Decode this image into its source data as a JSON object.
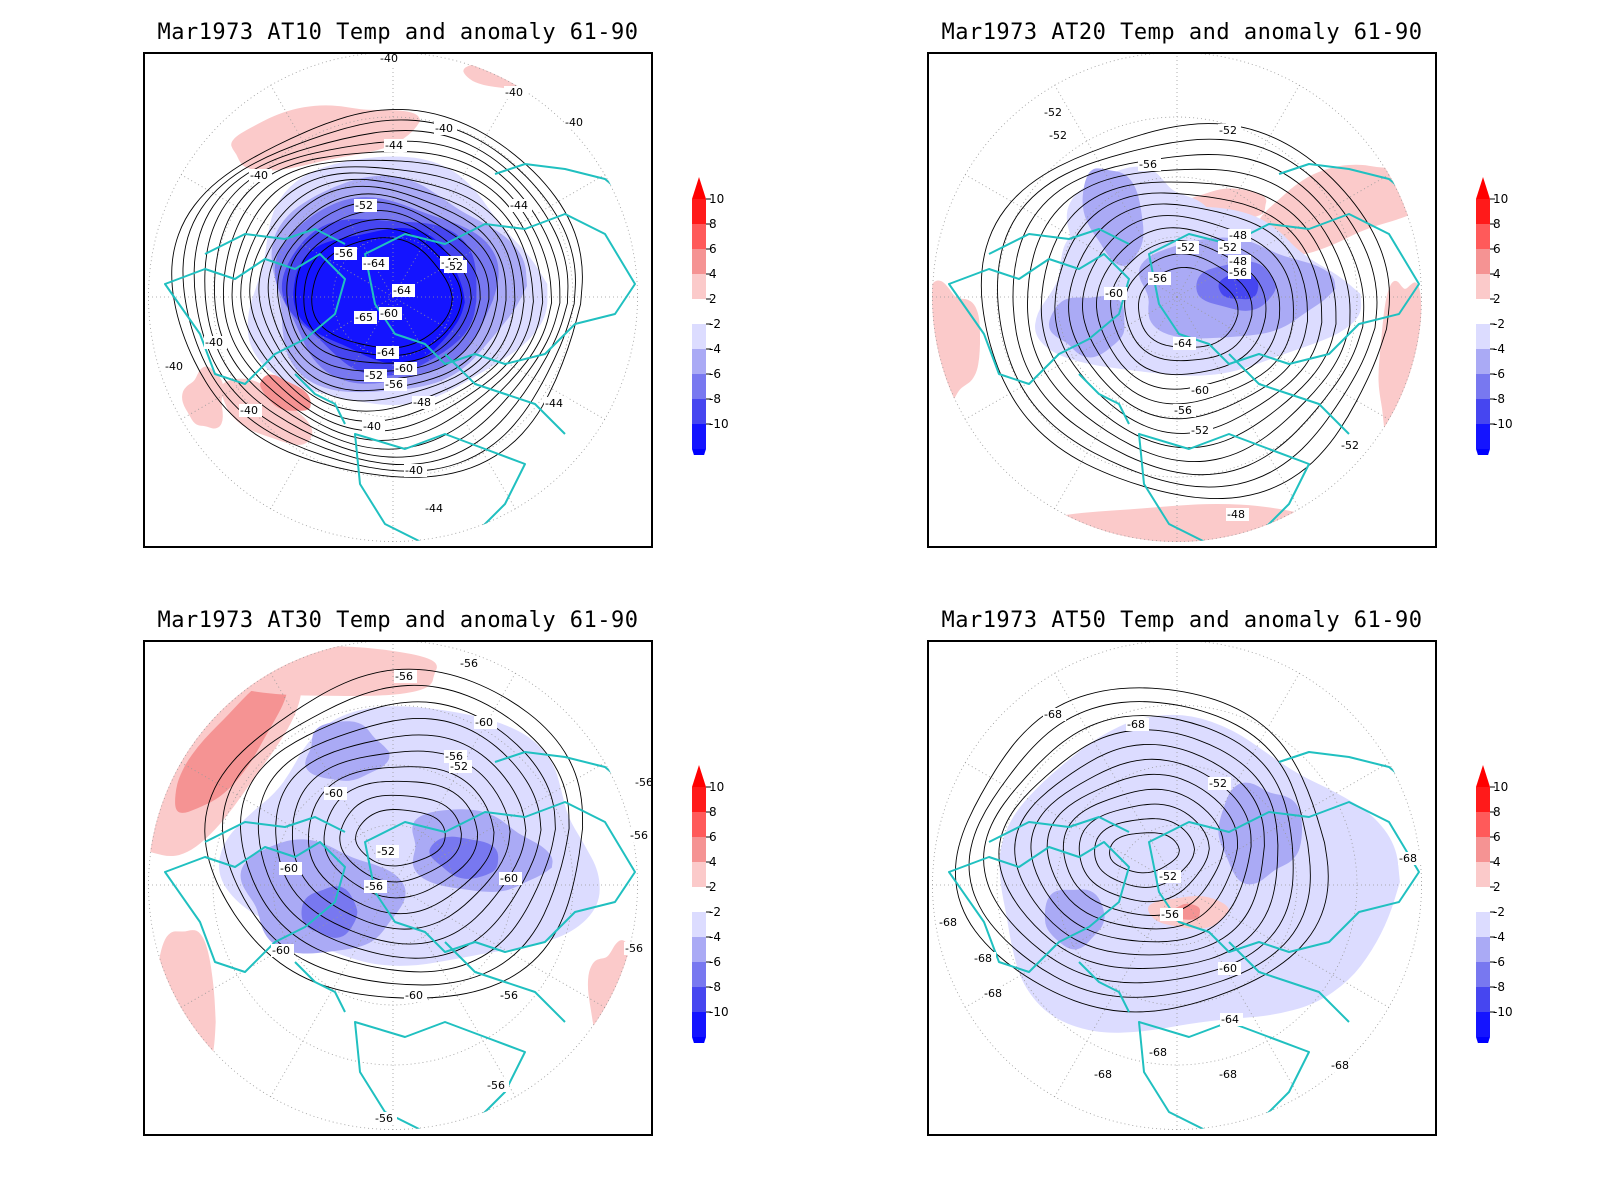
{
  "legend": {
    "labels": [
      "10",
      "8",
      "6",
      "4",
      "2",
      "-2",
      "-4",
      "-6",
      "-8",
      "-10"
    ],
    "colors": [
      "#ff1a1a",
      "#ff5a5a",
      "#f59393",
      "#fbcaca",
      "#ffffff",
      "#dcdcff",
      "#aaaaf5",
      "#7878f0",
      "#4646f0",
      "#1414ff"
    ],
    "tip_top": "#ff0000",
    "tip_bottom": "#0000ff"
  },
  "colors": {
    "coast": "#20c0c0",
    "contour": "#000000",
    "grid": "#999999"
  },
  "panels": [
    {
      "title": "Mar1973 AT10 Temp and anomaly 61-90",
      "contour_labels": [
        "-40",
        "-40",
        "-40",
        "-40",
        "-40",
        "-40",
        "-40",
        "-40",
        "-40",
        "-40",
        "-44",
        "-44",
        "-44",
        "-44",
        "-48",
        "-48",
        "-52",
        "-52",
        "-52",
        "-56",
        "-56",
        "-60",
        "-60",
        "-64",
        "-64",
        "-64",
        "-65",
        "-60"
      ]
    },
    {
      "title": "Mar1973 AT20 Temp and anomaly 61-90",
      "contour_labels": [
        "-52",
        "-52",
        "-52",
        "-56",
        "-48",
        "-52",
        "-52",
        "-56",
        "-56",
        "-60",
        "-64",
        "-60",
        "-56",
        "-52",
        "-48",
        "-48",
        "-52"
      ]
    },
    {
      "title": "Mar1973 AT30 Temp and anomaly 61-90",
      "contour_labels": [
        "-56",
        "-56",
        "-60",
        "-56",
        "-52",
        "-60",
        "-56",
        "-56",
        "-52",
        "-60",
        "-56",
        "-60",
        "-60",
        "-60",
        "-56",
        "-56",
        "-56",
        "-56"
      ]
    },
    {
      "title": "Mar1973 AT50 Temp and anomaly 61-90",
      "contour_labels": [
        "-68",
        "-68",
        "-52",
        "-68",
        "-52",
        "-56",
        "-60",
        "-68",
        "-68",
        "-68",
        "-64",
        "-68",
        "-68",
        "-68",
        "-68"
      ]
    }
  ]
}
